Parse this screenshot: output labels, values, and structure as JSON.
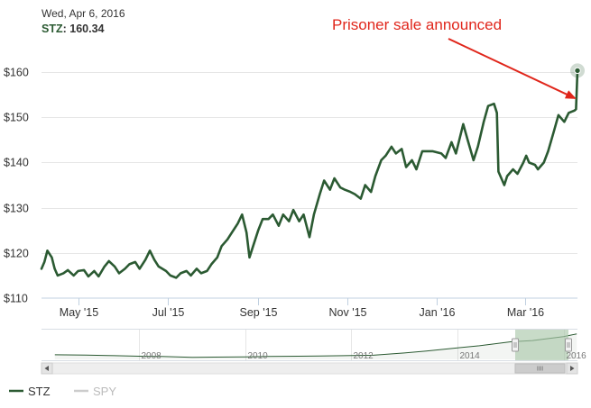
{
  "colors": {
    "stz": "#2b5a32",
    "spy": "#cccccc",
    "annotation": "#e0261b",
    "grid": "#e6e6e6",
    "axis": "#c0d0e0",
    "navigator_fill": "#aac8aa"
  },
  "tooltip": {
    "date": "Wed, Apr 6, 2016",
    "symbol": "STZ",
    "value": "160.34"
  },
  "annotation": {
    "text": "Prisoner sale announced"
  },
  "navigator": {
    "years": [
      "2008",
      "2010",
      "2012",
      "2014",
      "2016"
    ]
  },
  "legend": [
    {
      "label": "STZ",
      "color": "#2b5a32"
    },
    {
      "label": "SPY",
      "color": "#cccccc"
    }
  ],
  "chart_data": {
    "type": "line",
    "title": "",
    "xlabel": "",
    "ylabel": "",
    "ylim": [
      110,
      165
    ],
    "yticks": [
      110,
      120,
      130,
      140,
      150,
      160
    ],
    "ytick_labels": [
      "$110",
      "$120",
      "$130",
      "$140",
      "$150",
      "$160"
    ],
    "xticks": [
      "2015-05-01",
      "2015-07-01",
      "2015-09-01",
      "2015-11-01",
      "2016-01-01",
      "2016-03-01"
    ],
    "xtick_labels": [
      "May '15",
      "Jul '15",
      "Sep '15",
      "Nov '15",
      "Jan '16",
      "Mar '16"
    ],
    "xrange": [
      "2015-04-06",
      "2016-04-06"
    ],
    "grid": true,
    "legend_position": "bottom-left",
    "series": [
      {
        "name": "STZ",
        "color": "#2b5a32",
        "points": [
          [
            "2015-04-06",
            116.5
          ],
          [
            "2015-04-08",
            118.0
          ],
          [
            "2015-04-10",
            120.5
          ],
          [
            "2015-04-13",
            119.0
          ],
          [
            "2015-04-15",
            116.5
          ],
          [
            "2015-04-17",
            115.0
          ],
          [
            "2015-04-21",
            115.5
          ],
          [
            "2015-04-24",
            116.2
          ],
          [
            "2015-04-28",
            115.0
          ],
          [
            "2015-05-01",
            116.0
          ],
          [
            "2015-05-05",
            116.2
          ],
          [
            "2015-05-08",
            114.8
          ],
          [
            "2015-05-12",
            116.0
          ],
          [
            "2015-05-15",
            114.8
          ],
          [
            "2015-05-19",
            117.0
          ],
          [
            "2015-05-22",
            118.2
          ],
          [
            "2015-05-26",
            117.0
          ],
          [
            "2015-05-29",
            115.5
          ],
          [
            "2015-06-02",
            116.5
          ],
          [
            "2015-06-05",
            117.5
          ],
          [
            "2015-06-09",
            118.0
          ],
          [
            "2015-06-12",
            116.5
          ],
          [
            "2015-06-16",
            118.5
          ],
          [
            "2015-06-19",
            120.5
          ],
          [
            "2015-06-22",
            118.5
          ],
          [
            "2015-06-25",
            117.0
          ],
          [
            "2015-06-30",
            116.0
          ],
          [
            "2015-07-03",
            115.0
          ],
          [
            "2015-07-07",
            114.5
          ],
          [
            "2015-07-10",
            115.5
          ],
          [
            "2015-07-14",
            116.0
          ],
          [
            "2015-07-17",
            115.0
          ],
          [
            "2015-07-21",
            116.5
          ],
          [
            "2015-07-24",
            115.5
          ],
          [
            "2015-07-28",
            116.0
          ],
          [
            "2015-07-31",
            117.5
          ],
          [
            "2015-08-04",
            119.0
          ],
          [
            "2015-08-07",
            121.5
          ],
          [
            "2015-08-11",
            123.0
          ],
          [
            "2015-08-14",
            124.5
          ],
          [
            "2015-08-18",
            126.5
          ],
          [
            "2015-08-21",
            128.5
          ],
          [
            "2015-08-24",
            124.5
          ],
          [
            "2015-08-26",
            119.0
          ],
          [
            "2015-08-28",
            121.0
          ],
          [
            "2015-09-01",
            125.0
          ],
          [
            "2015-09-04",
            127.5
          ],
          [
            "2015-09-08",
            127.5
          ],
          [
            "2015-09-11",
            128.5
          ],
          [
            "2015-09-15",
            126.0
          ],
          [
            "2015-09-18",
            128.5
          ],
          [
            "2015-09-22",
            127.0
          ],
          [
            "2015-09-25",
            129.5
          ],
          [
            "2015-09-29",
            127.0
          ],
          [
            "2015-10-02",
            128.5
          ],
          [
            "2015-10-06",
            123.5
          ],
          [
            "2015-10-09",
            128.5
          ],
          [
            "2015-10-13",
            133.0
          ],
          [
            "2015-10-16",
            136.0
          ],
          [
            "2015-10-20",
            134.0
          ],
          [
            "2015-10-23",
            136.5
          ],
          [
            "2015-10-27",
            134.5
          ],
          [
            "2015-10-30",
            134.0
          ],
          [
            "2015-11-03",
            133.5
          ],
          [
            "2015-11-06",
            133.0
          ],
          [
            "2015-11-10",
            132.0
          ],
          [
            "2015-11-13",
            135.0
          ],
          [
            "2015-11-17",
            133.5
          ],
          [
            "2015-11-20",
            137.0
          ],
          [
            "2015-11-24",
            140.5
          ],
          [
            "2015-11-27",
            141.5
          ],
          [
            "2015-12-01",
            143.5
          ],
          [
            "2015-12-04",
            142.0
          ],
          [
            "2015-12-08",
            143.0
          ],
          [
            "2015-12-11",
            139.0
          ],
          [
            "2015-12-15",
            140.5
          ],
          [
            "2015-12-18",
            138.5
          ],
          [
            "2015-12-22",
            142.5
          ],
          [
            "2015-12-29",
            142.5
          ],
          [
            "2016-01-04",
            142.0
          ],
          [
            "2016-01-07",
            141.0
          ],
          [
            "2016-01-11",
            144.5
          ],
          [
            "2016-01-14",
            142.0
          ],
          [
            "2016-01-19",
            148.5
          ],
          [
            "2016-01-22",
            145.0
          ],
          [
            "2016-01-26",
            140.5
          ],
          [
            "2016-01-29",
            143.5
          ],
          [
            "2016-02-02",
            149.0
          ],
          [
            "2016-02-05",
            152.5
          ],
          [
            "2016-02-09",
            153.0
          ],
          [
            "2016-02-11",
            151.0
          ],
          [
            "2016-02-12",
            138.0
          ],
          [
            "2016-02-16",
            135.0
          ],
          [
            "2016-02-18",
            137.0
          ],
          [
            "2016-02-22",
            138.5
          ],
          [
            "2016-02-25",
            137.5
          ],
          [
            "2016-02-29",
            140.0
          ],
          [
            "2016-03-02",
            141.5
          ],
          [
            "2016-03-04",
            140.0
          ],
          [
            "2016-03-08",
            139.5
          ],
          [
            "2016-03-10",
            138.5
          ],
          [
            "2016-03-14",
            140.0
          ],
          [
            "2016-03-17",
            142.5
          ],
          [
            "2016-03-21",
            147.0
          ],
          [
            "2016-03-24",
            150.5
          ],
          [
            "2016-03-28",
            149.0
          ],
          [
            "2016-03-31",
            151.0
          ],
          [
            "2016-04-04",
            151.5
          ],
          [
            "2016-04-05",
            151.8
          ],
          [
            "2016-04-06",
            160.34
          ]
        ]
      }
    ],
    "navigator_series": {
      "name": "STZ",
      "points": [
        [
          "2006-06",
          29
        ],
        [
          "2007-01",
          27
        ],
        [
          "2007-06",
          24
        ],
        [
          "2008-01",
          20
        ],
        [
          "2008-06",
          18
        ],
        [
          "2009-01",
          13
        ],
        [
          "2009-06",
          14
        ],
        [
          "2010-01",
          16
        ],
        [
          "2010-06",
          18
        ],
        [
          "2011-01",
          20
        ],
        [
          "2011-06",
          21
        ],
        [
          "2012-01",
          24
        ],
        [
          "2012-06",
          26
        ],
        [
          "2013-01",
          40
        ],
        [
          "2013-06",
          52
        ],
        [
          "2014-01",
          72
        ],
        [
          "2014-06",
          85
        ],
        [
          "2015-01",
          110
        ],
        [
          "2015-06",
          118
        ],
        [
          "2016-01",
          142
        ],
        [
          "2016-04",
          160
        ]
      ]
    }
  }
}
